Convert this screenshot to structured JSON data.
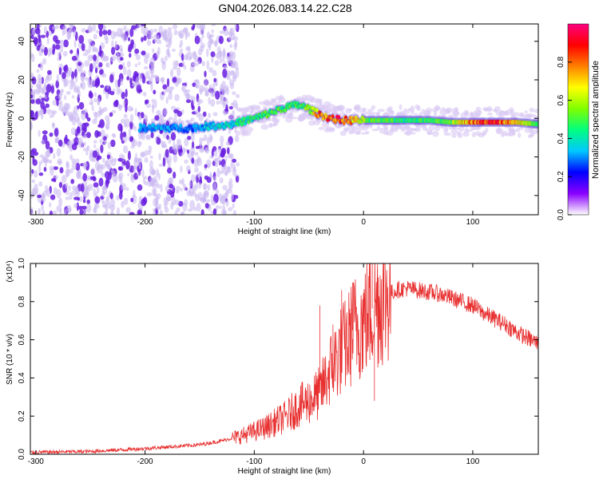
{
  "title": "GN04.2026.083.14.22.C28",
  "colors": {
    "axis": "#000000",
    "snr_line": "#e83030",
    "scatter_low": "#c9b6f0",
    "scatter_mid": "#6a1fe0",
    "ridge": "#2e10d8"
  },
  "chart_data": [
    {
      "type": "heatmap",
      "id": "spectrogram",
      "xlabel": "Height of straight line (km)",
      "ylabel": "Frequency (Hz)",
      "xlim": [
        -305,
        160
      ],
      "ylim": [
        -50,
        49
      ],
      "xticks": [
        -300,
        -200,
        -100,
        0,
        100
      ],
      "yticks": [
        -40,
        -20,
        0,
        20,
        40
      ],
      "colorbar": {
        "label": "Normalized spectral amplitude",
        "range": [
          0,
          1
        ],
        "ticks": [
          0.0,
          0.2,
          0.4,
          0.6,
          0.8
        ],
        "colors": [
          "#ffffff",
          "#8a00ff",
          "#0000ff",
          "#00c8ff",
          "#00ff80",
          "#80ff00",
          "#ffff00",
          "#ff8000",
          "#ff0000",
          "#ff0080"
        ]
      },
      "ridge": {
        "x": [
          -205,
          -180,
          -160,
          -140,
          -120,
          -100,
          -90,
          -80,
          -70,
          -60,
          -50,
          -40,
          -30,
          -20,
          -10,
          0,
          20,
          40,
          60,
          80,
          100,
          120,
          140,
          160
        ],
        "y": [
          -5,
          -5,
          -5,
          -4,
          -3,
          0,
          2,
          4,
          6,
          7,
          5,
          2,
          0,
          -1,
          -1,
          -1,
          -1,
          -1,
          -1,
          -2,
          -2,
          -2,
          -2,
          -3
        ],
        "amplitude": [
          0.35,
          0.35,
          0.3,
          0.4,
          0.45,
          0.5,
          0.55,
          0.55,
          0.5,
          0.55,
          0.6,
          0.85,
          0.9,
          0.95,
          0.8,
          0.6,
          0.55,
          0.5,
          0.55,
          0.6,
          0.9,
          0.95,
          0.8,
          0.5
        ]
      }
    },
    {
      "type": "line",
      "id": "snr",
      "xlabel": "Height of straight line (km)",
      "ylabel": "SNR (10 * v/v)",
      "y_multiplier": "(x10⁴)",
      "xlim": [
        -305,
        160
      ],
      "ylim": [
        0,
        1.0
      ],
      "xticks": [
        -300,
        -200,
        -100,
        0,
        100
      ],
      "yticks": [
        0.0,
        0.2,
        0.4,
        0.6,
        0.8,
        1.0
      ],
      "envelope": {
        "x": [
          -305,
          -250,
          -200,
          -150,
          -130,
          -110,
          -90,
          -70,
          -60,
          -50,
          -40,
          -30,
          -20,
          -15,
          -10,
          0,
          10,
          20,
          30,
          40,
          50,
          60,
          70,
          80,
          90,
          100,
          110,
          120,
          130,
          140,
          150,
          160
        ],
        "y": [
          0.01,
          0.015,
          0.03,
          0.05,
          0.07,
          0.1,
          0.14,
          0.2,
          0.25,
          0.28,
          0.32,
          0.45,
          0.55,
          0.58,
          0.65,
          0.7,
          0.78,
          0.83,
          0.86,
          0.87,
          0.86,
          0.85,
          0.84,
          0.82,
          0.8,
          0.78,
          0.74,
          0.71,
          0.68,
          0.64,
          0.61,
          0.58
        ]
      },
      "spikes": [
        {
          "x": -40,
          "y": 0.78
        },
        {
          "x": -28,
          "y": 0.68
        },
        {
          "x": -20,
          "y": 0.86
        },
        {
          "x": -10,
          "y": 0.9
        },
        {
          "x": 8,
          "y": 1.0
        },
        {
          "x": 10,
          "y": 0.28
        }
      ]
    }
  ]
}
